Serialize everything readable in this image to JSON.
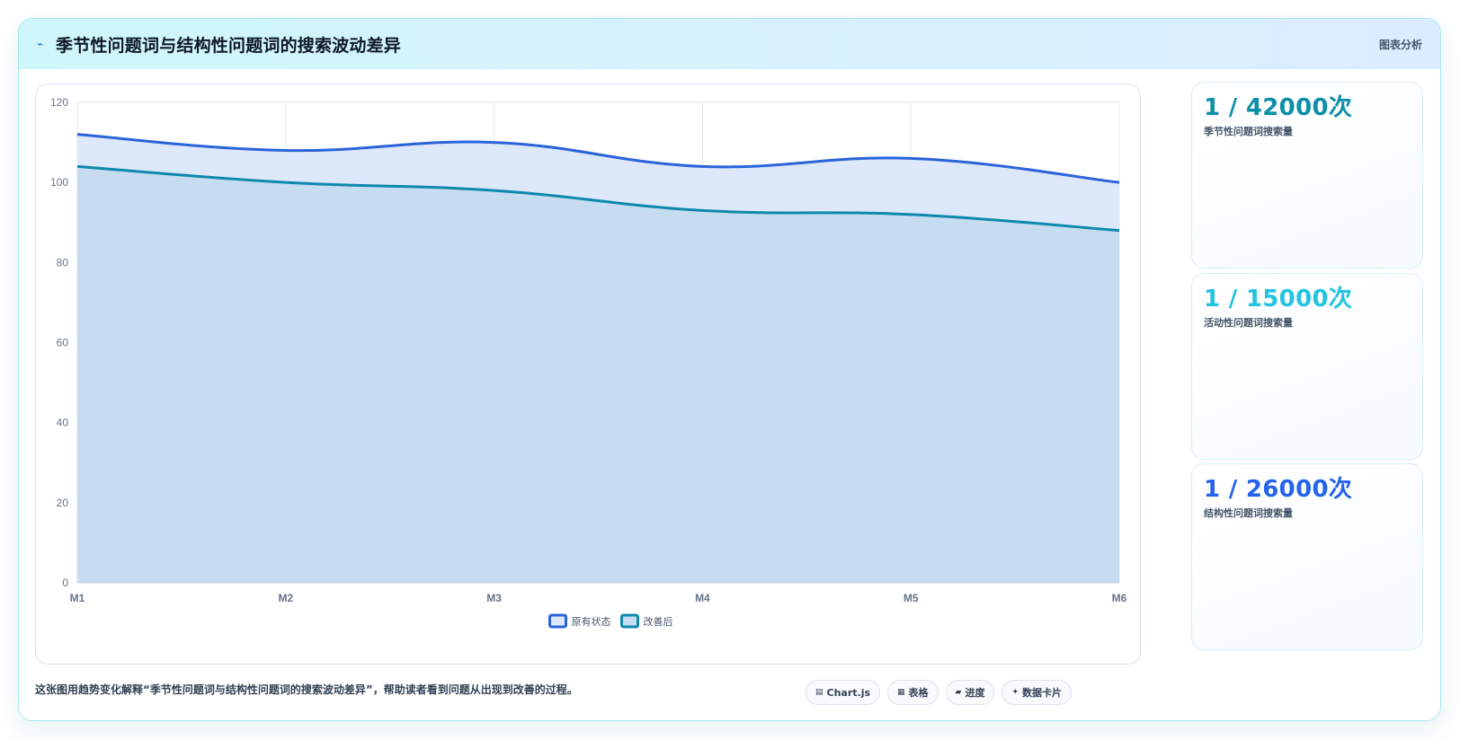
{
  "header": {
    "icon": "lightning-icon",
    "title": "季节性问题词与结构性问题词的搜索波动差异",
    "tag": "图表分析"
  },
  "kpis": [
    {
      "value": "1 / 42000次",
      "label": "季节性问题词搜索量",
      "color": "#0e8fa8"
    },
    {
      "value": "1 / 15000次",
      "label": "活动性问题词搜索量",
      "color": "#22c4e0"
    },
    {
      "value": "1 / 26000次",
      "label": "结构性问题词搜索量",
      "color": "#2563eb"
    }
  ],
  "caption": "这张图用趋势变化解释“季节性问题词与结构性问题词的搜索波动差异”，帮助读者看到问题从出现到改善的过程。",
  "pills": [
    {
      "icon": "chart-icon",
      "glyph": "▤",
      "label": "Chart.js"
    },
    {
      "icon": "table-icon",
      "glyph": "▦",
      "label": "表格"
    },
    {
      "icon": "progress-icon",
      "glyph": "▰",
      "label": "进度"
    },
    {
      "icon": "sparkle-icon",
      "glyph": "✦",
      "label": "数据卡片"
    }
  ],
  "chart_data": {
    "type": "area",
    "categories": [
      "M1",
      "M2",
      "M3",
      "M4",
      "M5",
      "M6"
    ],
    "series": [
      {
        "name": "原有状态",
        "values": [
          112,
          108,
          110,
          104,
          106,
          100
        ],
        "color": "#2b63d9",
        "fill": "#dde8fb"
      },
      {
        "name": "改善后",
        "values": [
          104,
          100,
          98,
          93,
          92,
          88
        ],
        "color": "#0e89ad",
        "fill": "#c5dcf1"
      }
    ],
    "ylim": [
      0,
      120
    ],
    "yticks": [
      0,
      20,
      40,
      60,
      80,
      100,
      120
    ],
    "grid": true,
    "legend": "bottom-center"
  }
}
